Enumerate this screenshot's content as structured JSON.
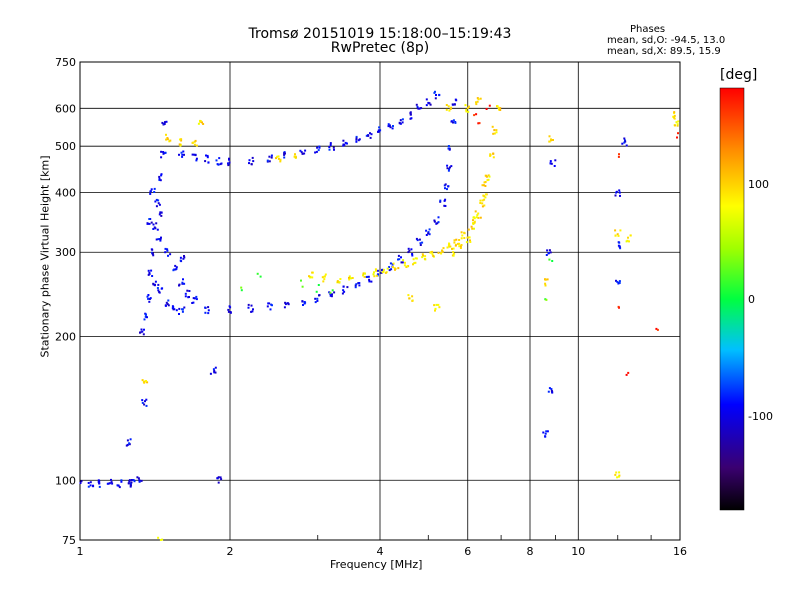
{
  "chart_data": {
    "type": "scatter",
    "title": "Tromsø 20151019 15:18:00–15:19:43",
    "subtitle": "RwPretec (8p)",
    "xlabel": "Frequency [MHz]",
    "ylabel": "Stationary phase Virtual Height [km]",
    "x_scale": "log",
    "y_scale": "log",
    "xlim": [
      1,
      16
    ],
    "ylim": [
      75,
      750
    ],
    "x_ticks": [
      "1",
      "2",
      "4",
      "6",
      "8",
      "10",
      "16"
    ],
    "y_ticks": [
      "75",
      "100",
      "200",
      "300",
      "400",
      "500",
      "600",
      "750"
    ],
    "grid": true,
    "stats_header": "Phases",
    "stats_lines": [
      "mean, sd,O: -94.5, 13.0",
      "mean, sd,X:  89.5, 15.9"
    ],
    "colorbar": {
      "label": "[deg]",
      "range": [
        -180,
        180
      ],
      "ticks": [
        "100",
        "0",
        "-100"
      ]
    },
    "traces": [
      {
        "mode": "O",
        "phase_deg": -95,
        "points": [
          [
            1.0,
            99
          ],
          [
            1.05,
            98.5
          ],
          [
            1.1,
            98.3
          ],
          [
            1.15,
            98.6
          ],
          [
            1.2,
            98.4
          ],
          [
            1.25,
            98.7
          ],
          [
            1.28,
            99
          ],
          [
            1.32,
            101
          ],
          [
            1.33,
            205
          ],
          [
            1.35,
            220
          ],
          [
            1.37,
            240
          ],
          [
            1.39,
            270
          ],
          [
            1.4,
            300
          ],
          [
            1.42,
            340
          ],
          [
            1.43,
            380
          ],
          [
            1.45,
            430
          ],
          [
            1.47,
            480
          ],
          [
            1.48,
            560
          ],
          [
            1.38,
            350
          ],
          [
            1.4,
            400
          ],
          [
            1.42,
            260
          ],
          [
            1.44,
            320
          ],
          [
            1.46,
            360
          ],
          [
            1.5,
            300
          ],
          [
            1.55,
            280
          ],
          [
            1.6,
            260
          ],
          [
            1.65,
            245
          ],
          [
            1.7,
            238
          ],
          [
            1.6,
            290
          ],
          [
            1.45,
            250
          ],
          [
            1.5,
            235
          ],
          [
            1.55,
            228
          ],
          [
            1.6,
            226
          ],
          [
            1.8,
            227
          ],
          [
            2.0,
            228
          ],
          [
            2.2,
            229
          ],
          [
            2.4,
            231
          ],
          [
            2.6,
            233
          ],
          [
            2.8,
            236
          ],
          [
            3.0,
            240
          ],
          [
            3.2,
            245
          ],
          [
            3.4,
            250
          ],
          [
            3.6,
            257
          ],
          [
            3.8,
            265
          ],
          [
            4.0,
            272
          ],
          [
            4.2,
            280
          ],
          [
            4.4,
            290
          ],
          [
            4.6,
            300
          ],
          [
            4.8,
            315
          ],
          [
            5.0,
            330
          ],
          [
            5.2,
            350
          ],
          [
            5.35,
            380
          ],
          [
            5.45,
            410
          ],
          [
            5.5,
            450
          ],
          [
            5.55,
            500
          ],
          [
            5.6,
            560
          ],
          [
            5.65,
            620
          ],
          [
            1.6,
            480
          ],
          [
            1.7,
            475
          ],
          [
            1.8,
            470
          ],
          [
            1.9,
            465
          ],
          [
            2.0,
            464
          ],
          [
            2.2,
            465
          ],
          [
            2.4,
            470
          ],
          [
            2.6,
            478
          ],
          [
            2.8,
            486
          ],
          [
            3.0,
            493
          ],
          [
            3.2,
            500
          ],
          [
            3.4,
            508
          ],
          [
            3.6,
            517
          ],
          [
            3.8,
            527
          ],
          [
            4.0,
            538
          ],
          [
            4.2,
            552
          ],
          [
            4.4,
            565
          ],
          [
            4.6,
            580
          ],
          [
            4.8,
            600
          ],
          [
            5.0,
            620
          ],
          [
            5.2,
            640
          ],
          [
            8.6,
            125
          ],
          [
            8.8,
            155
          ],
          [
            8.7,
            300
          ],
          [
            8.9,
            460
          ],
          [
            12.0,
            400
          ],
          [
            12.4,
            510
          ],
          [
            12.0,
            310
          ],
          [
            1.25,
            120
          ],
          [
            1.35,
            145
          ],
          [
            1.85,
            170
          ],
          [
            1.9,
            100
          ],
          [
            12.0,
            260
          ]
        ]
      },
      {
        "mode": "X",
        "phase_deg": 90,
        "points": [
          [
            2.9,
            270
          ],
          [
            3.1,
            265
          ],
          [
            3.3,
            263
          ],
          [
            3.5,
            265
          ],
          [
            3.7,
            268
          ],
          [
            3.9,
            272
          ],
          [
            4.1,
            276
          ],
          [
            4.3,
            280
          ],
          [
            4.5,
            284
          ],
          [
            4.7,
            288
          ],
          [
            4.9,
            292
          ],
          [
            5.1,
            297
          ],
          [
            5.3,
            302
          ],
          [
            5.5,
            308
          ],
          [
            5.7,
            315
          ],
          [
            5.9,
            325
          ],
          [
            6.1,
            340
          ],
          [
            6.3,
            360
          ],
          [
            6.5,
            390
          ],
          [
            6.6,
            430
          ],
          [
            6.7,
            480
          ],
          [
            6.8,
            540
          ],
          [
            6.9,
            600
          ],
          [
            5.6,
            300
          ],
          [
            5.8,
            310
          ],
          [
            6.0,
            320
          ],
          [
            6.2,
            350
          ],
          [
            6.4,
            380
          ],
          [
            6.5,
            420
          ],
          [
            6.0,
            600
          ],
          [
            6.3,
            620
          ],
          [
            5.5,
            600
          ],
          [
            1.5,
            520
          ],
          [
            1.6,
            510
          ],
          [
            1.7,
            505
          ],
          [
            2.5,
            470
          ],
          [
            2.7,
            480
          ],
          [
            1.35,
            160
          ],
          [
            1.45,
            75
          ],
          [
            4.6,
            240
          ],
          [
            5.2,
            230
          ],
          [
            12.0,
            330
          ],
          [
            12.6,
            320
          ],
          [
            15.5,
            580
          ],
          [
            15.8,
            560
          ],
          [
            8.8,
            520
          ],
          [
            8.6,
            260
          ],
          [
            1.75,
            560
          ],
          [
            12.0,
            103
          ]
        ]
      },
      {
        "mode": "mixed",
        "phase_deg": 20,
        "points": [
          [
            2.8,
            258
          ],
          [
            3.0,
            252
          ],
          [
            3.2,
            248
          ],
          [
            8.6,
            240
          ],
          [
            8.8,
            290
          ],
          [
            2.3,
            270
          ],
          [
            2.1,
            250
          ]
        ]
      },
      {
        "mode": "mixed",
        "phase_deg": 170,
        "points": [
          [
            6.6,
            600
          ],
          [
            6.2,
            580
          ],
          [
            12.0,
            480
          ],
          [
            12.6,
            168
          ],
          [
            14.5,
            205
          ],
          [
            12.0,
            230
          ],
          [
            6.3,
            560
          ],
          [
            15.7,
            530
          ]
        ]
      }
    ]
  }
}
